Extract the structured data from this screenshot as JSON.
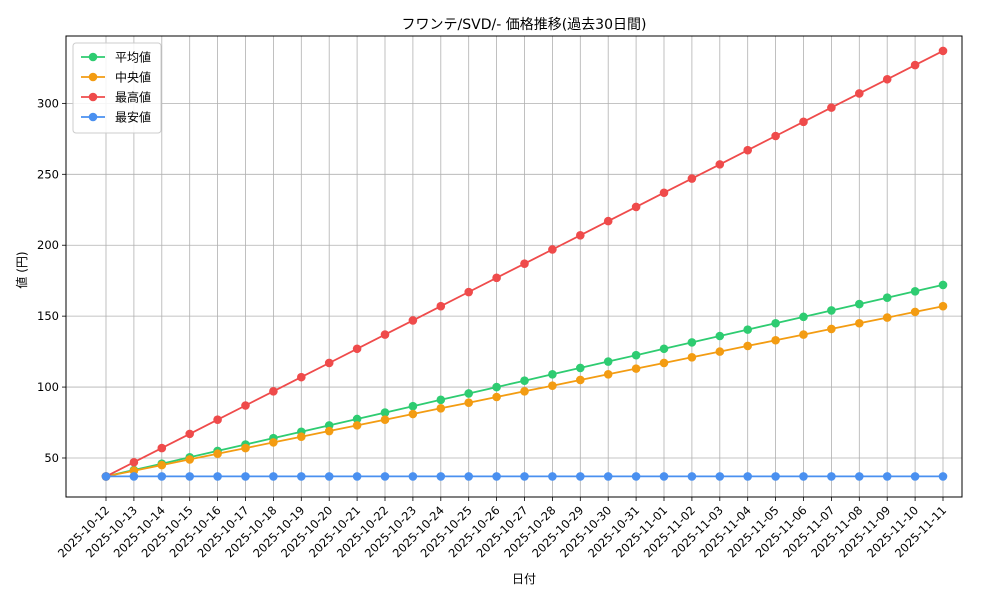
{
  "chart_data": {
    "type": "line",
    "title": "フワンテ/SVD/- 価格推移(過去30日間)",
    "xlabel": "日付",
    "ylabel": "値 (円)",
    "grid": true,
    "legend_position": "top-left",
    "ylim": [
      22.5,
      347.5
    ],
    "yticks": [
      50,
      100,
      150,
      200,
      250,
      300
    ],
    "x": [
      "2025-10-12",
      "2025-10-13",
      "2025-10-14",
      "2025-10-15",
      "2025-10-16",
      "2025-10-17",
      "2025-10-18",
      "2025-10-19",
      "2025-10-20",
      "2025-10-21",
      "2025-10-22",
      "2025-10-23",
      "2025-10-24",
      "2025-10-25",
      "2025-10-26",
      "2025-10-27",
      "2025-10-28",
      "2025-10-29",
      "2025-10-30",
      "2025-10-31",
      "2025-11-01",
      "2025-11-02",
      "2025-11-03",
      "2025-11-04",
      "2025-11-05",
      "2025-11-06",
      "2025-11-07",
      "2025-11-08",
      "2025-11-09",
      "2025-11-10",
      "2025-11-11"
    ],
    "series": [
      {
        "name": "平均値",
        "color": "#2ecc71",
        "values": [
          37,
          41.5,
          46,
          50.5,
          55,
          59.5,
          64,
          68.5,
          73,
          77.5,
          82,
          86.5,
          91,
          95.5,
          100,
          104.5,
          109,
          113.5,
          118,
          122.5,
          127,
          131.5,
          136,
          140.5,
          145,
          149.5,
          154,
          158.5,
          163,
          167.5,
          172
        ]
      },
      {
        "name": "中央値",
        "color": "#f39c12",
        "values": [
          37,
          41,
          45,
          49,
          53,
          57,
          61,
          65,
          69,
          73,
          77,
          81,
          85,
          89,
          93,
          97,
          101,
          105,
          109,
          113,
          117,
          121,
          125,
          129,
          133,
          137,
          141,
          145,
          149,
          153,
          157
        ]
      },
      {
        "name": "最高値",
        "color": "#ef4b4b",
        "values": [
          37,
          47,
          57,
          67,
          77,
          87,
          97,
          107,
          117,
          127,
          137,
          147,
          157,
          167,
          177,
          187,
          197,
          207,
          217,
          227,
          237,
          247,
          257,
          267,
          277,
          287,
          297,
          307,
          317,
          327,
          337
        ]
      },
      {
        "name": "最安値",
        "color": "#4a90f0",
        "values": [
          37,
          37,
          37,
          37,
          37,
          37,
          37,
          37,
          37,
          37,
          37,
          37,
          37,
          37,
          37,
          37,
          37,
          37,
          37,
          37,
          37,
          37,
          37,
          37,
          37,
          37,
          37,
          37,
          37,
          37,
          37
        ]
      }
    ]
  }
}
